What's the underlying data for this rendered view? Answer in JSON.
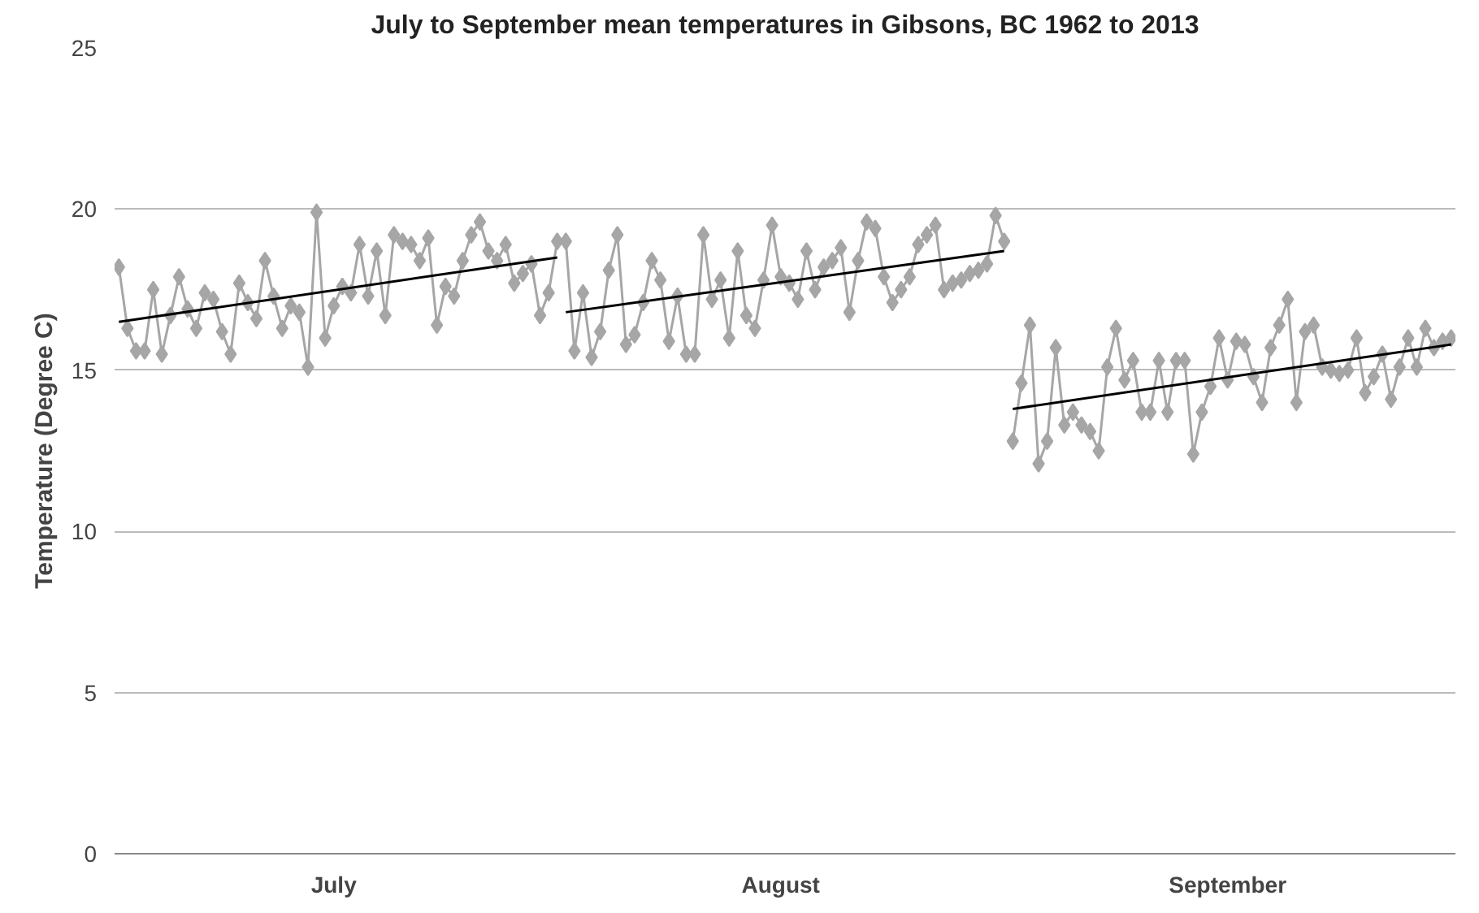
{
  "chart_data": {
    "type": "line",
    "title": "July to September mean temperatures in Gibsons, BC 1962 to 2013",
    "ylabel": "Temperature (Degree C)",
    "categories": [
      null,
      null,
      null,
      null,
      null,
      null,
      null,
      null,
      null,
      null,
      null,
      null,
      null,
      null,
      null,
      null,
      null,
      null,
      null,
      null,
      null,
      null,
      null,
      null,
      null,
      "July",
      null,
      null,
      null,
      null,
      null,
      null,
      null,
      null,
      null,
      null,
      null,
      null,
      null,
      null,
      null,
      null,
      null,
      null,
      null,
      null,
      null,
      null,
      null,
      null,
      null,
      null,
      null,
      null,
      null,
      null,
      null,
      null,
      null,
      null,
      null,
      null,
      null,
      null,
      null,
      null,
      null,
      null,
      null,
      null,
      null,
      null,
      null,
      null,
      null,
      null,
      null,
      "August",
      null,
      null,
      null,
      null,
      null,
      null,
      null,
      null,
      null,
      null,
      null,
      null,
      null,
      null,
      null,
      null,
      null,
      null,
      null,
      null,
      null,
      null,
      null,
      null,
      null,
      null,
      null,
      null,
      null,
      null,
      null,
      null,
      null,
      null,
      null,
      null,
      null,
      null,
      null,
      null,
      null,
      null,
      null,
      null,
      null,
      null,
      null,
      null,
      null,
      null,
      null,
      "September",
      null,
      null,
      null,
      null,
      null,
      null,
      null,
      null,
      null,
      null,
      null,
      null,
      null,
      null,
      null,
      null,
      null,
      null,
      null,
      null,
      null,
      null,
      null,
      null,
      null,
      null
    ],
    "ylim": [
      0,
      25
    ],
    "yticks": [
      0,
      5,
      10,
      15,
      20,
      25
    ],
    "grid": "y",
    "marker": "diamond",
    "line_style": "solid",
    "series": [
      {
        "color": "#a6a6a6",
        "values": [
          18.2,
          16.3,
          15.6,
          15.6,
          17.5,
          15.5,
          16.7,
          17.9,
          16.9,
          16.3,
          17.4,
          17.2,
          16.2,
          15.5,
          17.7,
          17.1,
          16.6,
          18.4,
          17.3,
          16.3,
          17.0,
          16.8,
          15.1,
          19.9,
          16.0,
          17.0,
          17.6,
          17.4,
          18.9,
          17.3,
          18.7,
          16.7,
          19.2,
          19.0,
          18.9,
          18.4,
          19.1,
          16.4,
          17.6,
          17.3,
          18.4,
          19.2,
          19.6,
          18.7,
          18.4,
          18.9,
          17.7,
          18.0,
          18.3,
          16.7,
          17.4,
          19.0,
          null,
          null,
          null,
          null,
          null,
          null,
          null,
          null,
          null,
          null,
          null,
          null,
          null,
          null,
          null,
          null,
          null,
          null,
          null,
          null,
          null,
          null,
          null,
          null,
          null,
          null,
          null,
          null,
          null,
          null,
          null,
          null,
          null,
          null,
          null,
          null,
          null,
          null,
          null,
          null,
          null,
          null,
          null,
          null,
          null,
          null,
          null,
          null,
          null,
          null,
          null,
          null,
          null,
          null,
          null,
          null,
          null,
          null,
          null,
          null,
          null,
          null,
          null,
          null,
          null,
          null,
          null,
          null,
          null,
          null,
          null,
          null,
          null,
          null,
          null,
          null,
          null,
          null,
          null,
          null,
          null,
          null,
          null,
          null,
          null,
          null,
          null,
          null,
          null,
          null,
          null,
          null,
          null,
          null,
          null,
          null,
          null,
          null,
          null,
          null,
          null,
          null,
          null,
          null
        ]
      },
      {
        "color": "#a6a6a6",
        "values": [
          null,
          null,
          null,
          null,
          null,
          null,
          null,
          null,
          null,
          null,
          null,
          null,
          null,
          null,
          null,
          null,
          null,
          null,
          null,
          null,
          null,
          null,
          null,
          null,
          null,
          null,
          null,
          null,
          null,
          null,
          null,
          null,
          null,
          null,
          null,
          null,
          null,
          null,
          null,
          null,
          null,
          null,
          null,
          null,
          null,
          null,
          null,
          null,
          null,
          null,
          null,
          null,
          19.0,
          15.6,
          17.4,
          15.4,
          16.2,
          18.1,
          19.2,
          15.8,
          16.1,
          17.1,
          18.4,
          17.8,
          15.9,
          17.3,
          15.5,
          15.5,
          19.2,
          17.2,
          17.8,
          16.0,
          18.7,
          16.7,
          16.3,
          17.8,
          19.5,
          17.9,
          17.7,
          17.2,
          18.7,
          17.5,
          18.2,
          18.4,
          18.8,
          16.8,
          18.4,
          19.6,
          19.4,
          17.9,
          17.1,
          17.5,
          17.9,
          18.9,
          19.2,
          19.5,
          17.5,
          17.7,
          17.8,
          18.0,
          18.1,
          18.3,
          19.8,
          19.0,
          null,
          null,
          null,
          null,
          null,
          null,
          null,
          null,
          null,
          null,
          null,
          null,
          null,
          null,
          null,
          null,
          null,
          null,
          null,
          null,
          null,
          null,
          null,
          null,
          null,
          null,
          null,
          null,
          null,
          null,
          null,
          null,
          null,
          null,
          null,
          null,
          null,
          null,
          null,
          null,
          null,
          null,
          null,
          null,
          null,
          null,
          null,
          null,
          null,
          null,
          null,
          null
        ]
      },
      {
        "color": "#a6a6a6",
        "values": [
          null,
          null,
          null,
          null,
          null,
          null,
          null,
          null,
          null,
          null,
          null,
          null,
          null,
          null,
          null,
          null,
          null,
          null,
          null,
          null,
          null,
          null,
          null,
          null,
          null,
          null,
          null,
          null,
          null,
          null,
          null,
          null,
          null,
          null,
          null,
          null,
          null,
          null,
          null,
          null,
          null,
          null,
          null,
          null,
          null,
          null,
          null,
          null,
          null,
          null,
          null,
          null,
          null,
          null,
          null,
          null,
          null,
          null,
          null,
          null,
          null,
          null,
          null,
          null,
          null,
          null,
          null,
          null,
          null,
          null,
          null,
          null,
          null,
          null,
          null,
          null,
          null,
          null,
          null,
          null,
          null,
          null,
          null,
          null,
          null,
          null,
          null,
          null,
          null,
          null,
          null,
          null,
          null,
          null,
          null,
          null,
          null,
          null,
          null,
          null,
          null,
          null,
          null,
          null,
          12.8,
          14.6,
          16.4,
          12.1,
          12.8,
          15.7,
          13.3,
          13.7,
          13.3,
          13.1,
          12.5,
          15.1,
          16.3,
          14.7,
          15.3,
          13.7,
          13.7,
          15.3,
          13.7,
          15.3,
          15.3,
          12.4,
          13.7,
          14.5,
          16.0,
          14.7,
          15.9,
          15.8,
          14.8,
          14.0,
          15.7,
          16.4,
          17.2,
          14.0,
          16.2,
          16.4,
          15.1,
          15.0,
          14.9,
          15.0,
          16.0,
          14.3,
          14.8,
          15.5,
          14.1,
          15.1,
          16.0,
          15.1,
          16.3,
          15.7,
          15.9,
          16.0
        ]
      },
      {
        "type": "line",
        "marker": "none",
        "color": "#000000",
        "values": [
          16.5,
          null,
          null,
          null,
          null,
          null,
          null,
          null,
          null,
          null,
          null,
          null,
          null,
          null,
          null,
          null,
          null,
          null,
          null,
          null,
          null,
          null,
          null,
          null,
          null,
          null,
          null,
          null,
          null,
          null,
          null,
          null,
          null,
          null,
          null,
          null,
          null,
          null,
          null,
          null,
          null,
          null,
          null,
          null,
          null,
          null,
          null,
          null,
          null,
          null,
          null,
          18.5,
          null,
          null,
          null,
          null,
          null,
          null,
          null,
          null,
          null,
          null,
          null,
          null,
          null,
          null,
          null,
          null,
          null,
          null,
          null,
          null,
          null,
          null,
          null,
          null,
          null,
          null,
          null,
          null,
          null,
          null,
          null,
          null,
          null,
          null,
          null,
          null,
          null,
          null,
          null,
          null,
          null,
          null,
          null,
          null,
          null,
          null,
          null,
          null,
          null,
          null,
          null,
          null,
          null,
          null,
          null,
          null,
          null,
          null,
          null,
          null,
          null,
          null,
          null,
          null,
          null,
          null,
          null,
          null,
          null,
          null,
          null,
          null,
          null,
          null,
          null,
          null,
          null,
          null,
          null,
          null,
          null,
          null,
          null,
          null,
          null,
          null,
          null,
          null,
          null,
          null,
          null,
          null,
          null,
          null,
          null,
          null,
          null,
          null,
          null,
          null,
          null,
          null,
          null,
          null
        ]
      },
      {
        "type": "line",
        "marker": "none",
        "color": "#000000",
        "values": [
          null,
          null,
          null,
          null,
          null,
          null,
          null,
          null,
          null,
          null,
          null,
          null,
          null,
          null,
          null,
          null,
          null,
          null,
          null,
          null,
          null,
          null,
          null,
          null,
          null,
          null,
          null,
          null,
          null,
          null,
          null,
          null,
          null,
          null,
          null,
          null,
          null,
          null,
          null,
          null,
          null,
          null,
          null,
          null,
          null,
          null,
          null,
          null,
          null,
          null,
          null,
          null,
          16.8,
          null,
          null,
          null,
          null,
          null,
          null,
          null,
          null,
          null,
          null,
          null,
          null,
          null,
          null,
          null,
          null,
          null,
          null,
          null,
          null,
          null,
          null,
          null,
          null,
          null,
          null,
          null,
          null,
          null,
          null,
          null,
          null,
          null,
          null,
          null,
          null,
          null,
          null,
          null,
          null,
          null,
          null,
          null,
          null,
          null,
          null,
          null,
          null,
          null,
          null,
          18.7,
          null,
          null,
          null,
          null,
          null,
          null,
          null,
          null,
          null,
          null,
          null,
          null,
          null,
          null,
          null,
          null,
          null,
          null,
          null,
          null,
          null,
          null,
          null,
          null,
          null,
          null,
          null,
          null,
          null,
          null,
          null,
          null,
          null,
          null,
          null,
          null,
          null,
          null,
          null,
          null,
          null,
          null,
          null,
          null,
          null,
          null,
          null,
          null,
          null,
          null,
          null,
          null
        ]
      },
      {
        "type": "line",
        "marker": "none",
        "color": "#000000",
        "values": [
          null,
          null,
          null,
          null,
          null,
          null,
          null,
          null,
          null,
          null,
          null,
          null,
          null,
          null,
          null,
          null,
          null,
          null,
          null,
          null,
          null,
          null,
          null,
          null,
          null,
          null,
          null,
          null,
          null,
          null,
          null,
          null,
          null,
          null,
          null,
          null,
          null,
          null,
          null,
          null,
          null,
          null,
          null,
          null,
          null,
          null,
          null,
          null,
          null,
          null,
          null,
          null,
          null,
          null,
          null,
          null,
          null,
          null,
          null,
          null,
          null,
          null,
          null,
          null,
          null,
          null,
          null,
          null,
          null,
          null,
          null,
          null,
          null,
          null,
          null,
          null,
          null,
          null,
          null,
          null,
          null,
          null,
          null,
          null,
          null,
          null,
          null,
          null,
          null,
          null,
          null,
          null,
          null,
          null,
          null,
          null,
          null,
          null,
          null,
          null,
          null,
          null,
          null,
          null,
          13.8,
          null,
          null,
          null,
          null,
          null,
          null,
          null,
          null,
          null,
          null,
          null,
          null,
          null,
          null,
          null,
          null,
          null,
          null,
          null,
          null,
          null,
          null,
          null,
          null,
          null,
          null,
          null,
          null,
          null,
          null,
          null,
          null,
          null,
          null,
          null,
          null,
          null,
          null,
          null,
          null,
          null,
          null,
          null,
          null,
          null,
          null,
          null,
          null,
          null,
          null,
          15.8
        ]
      }
    ]
  }
}
